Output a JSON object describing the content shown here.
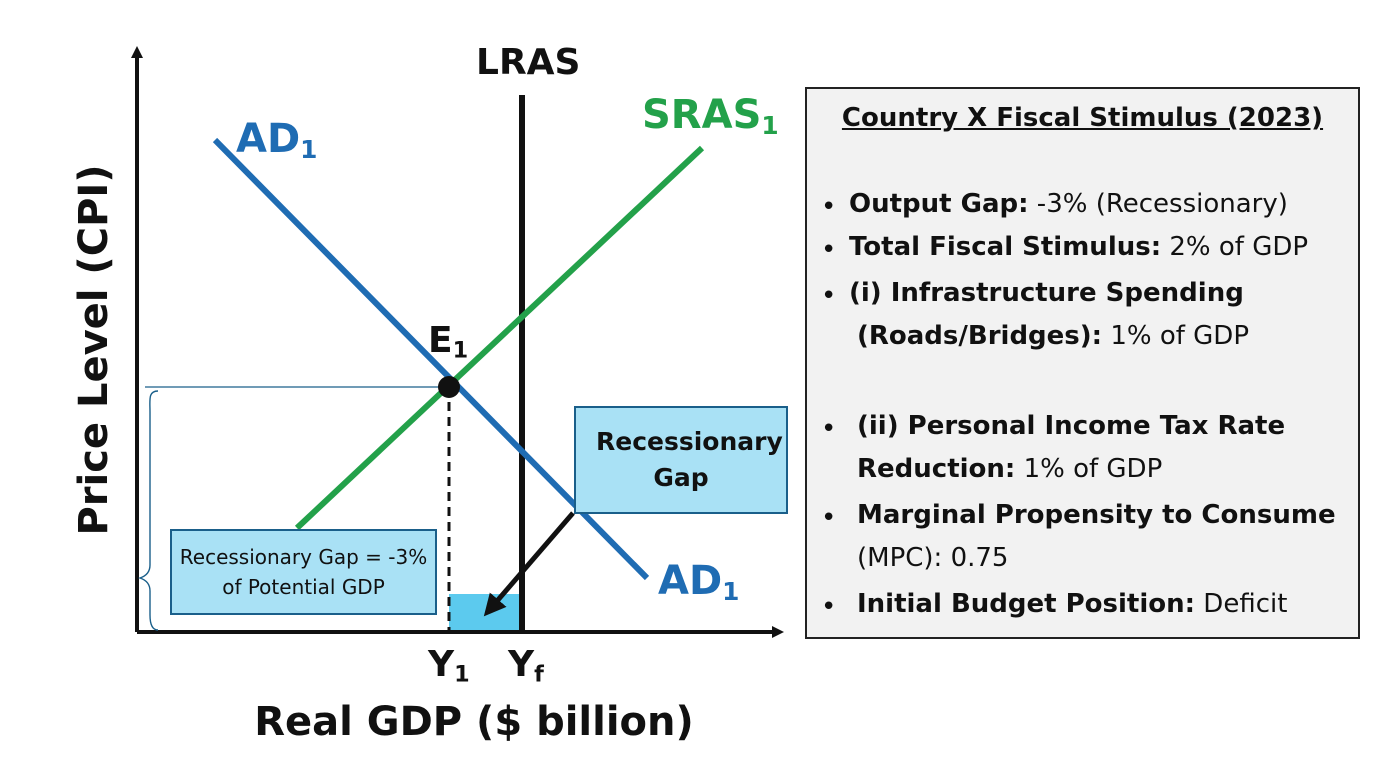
{
  "diagram": {
    "y_axis_title": "Price Level (CPI)",
    "x_axis_title": "Real GDP ($ billion)",
    "lras": {
      "label": "LRAS"
    },
    "sras": {
      "name": "SRAS",
      "sub": "1"
    },
    "ad_top": {
      "name": "AD",
      "sub": "1"
    },
    "ad_bottom": {
      "name": "AD",
      "sub": "1"
    },
    "equilibrium": {
      "name": "E",
      "sub": "1"
    },
    "x_ticks": [
      {
        "name": "Y",
        "sub": "1"
      },
      {
        "name": "Y",
        "sub": "f"
      }
    ],
    "callout_gap": "Recessionary Gap",
    "callout_gap_size": "Recessionary Gap = -3% of Potential GDP",
    "colors": {
      "ad": "#1f6cb3",
      "sras": "#23a14a",
      "lras": "#111111",
      "gap_fill": "#a9e1f5",
      "gap_shade": "#5ccaee"
    }
  },
  "info": {
    "title": "Country X Fiscal Stimulus (2023)",
    "items": [
      {
        "bold": "Output Gap:",
        "text": " -3% (Recessionary)"
      },
      {
        "bold": "Total Fiscal Stimulus:",
        "text": " 2% of GDP"
      },
      {
        "bold": "(i) Infrastructure Spending",
        "text": ""
      },
      {
        "bold": "(Roads/Bridges):",
        "text": " 1% of GDP"
      },
      {
        "bold": "(ii) Personal Income Tax Rate",
        "text": ""
      },
      {
        "bold": "Reduction:",
        "text": " 1% of GDP"
      },
      {
        "bold": "Marginal Propensity to Consume",
        "text": ""
      },
      {
        "bold": "",
        "text": "(MPC): 0.75"
      },
      {
        "bold": "Initial Budget Position:",
        "text": " Deficit"
      }
    ]
  }
}
